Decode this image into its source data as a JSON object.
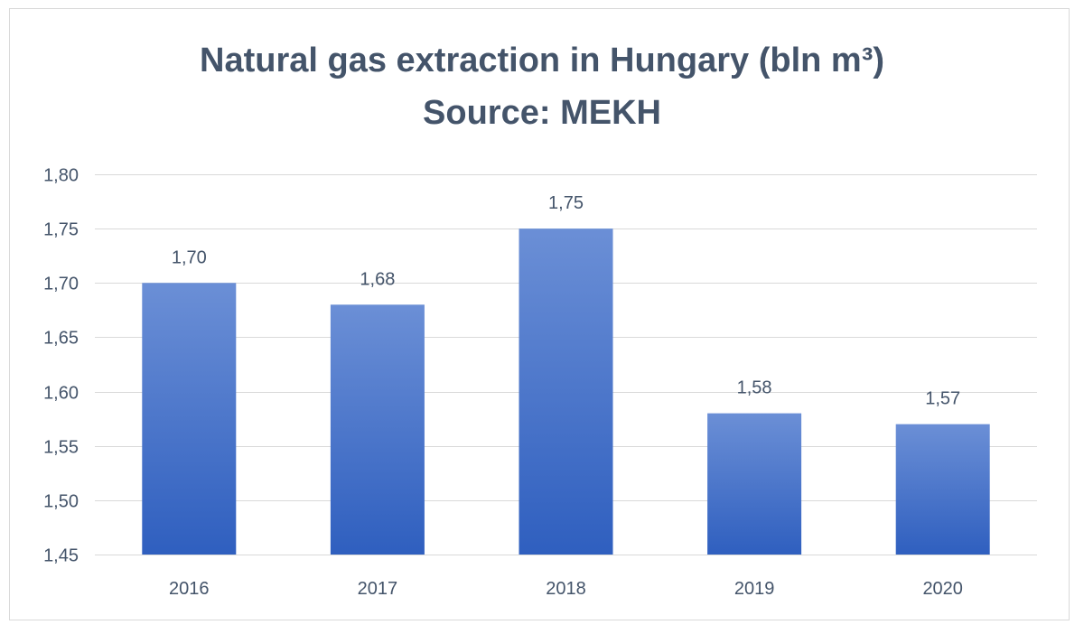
{
  "chart_data": {
    "type": "bar",
    "title_line1": "Natural gas extraction in Hungary (bln m³)",
    "title_line2": "Source: MEKH",
    "xlabel": "",
    "ylabel": "",
    "categories": [
      "2016",
      "2017",
      "2018",
      "2019",
      "2020"
    ],
    "values": [
      1.7,
      1.68,
      1.75,
      1.58,
      1.57
    ],
    "data_labels": [
      "1,70",
      "1,68",
      "1,75",
      "1,58",
      "1,57"
    ],
    "ylim": [
      1.45,
      1.8
    ],
    "yticks": [
      1.45,
      1.5,
      1.55,
      1.6,
      1.65,
      1.7,
      1.75,
      1.8
    ],
    "ytick_labels": [
      "1,45",
      "1,50",
      "1,55",
      "1,60",
      "1,65",
      "1,70",
      "1,75",
      "1,80"
    ],
    "grid": true,
    "legend": "none",
    "colors": {
      "bar_top": "#6b8fd6",
      "bar_bottom": "#2f5fbf",
      "grid": "#d9d9d9",
      "text": "#44546a"
    }
  }
}
